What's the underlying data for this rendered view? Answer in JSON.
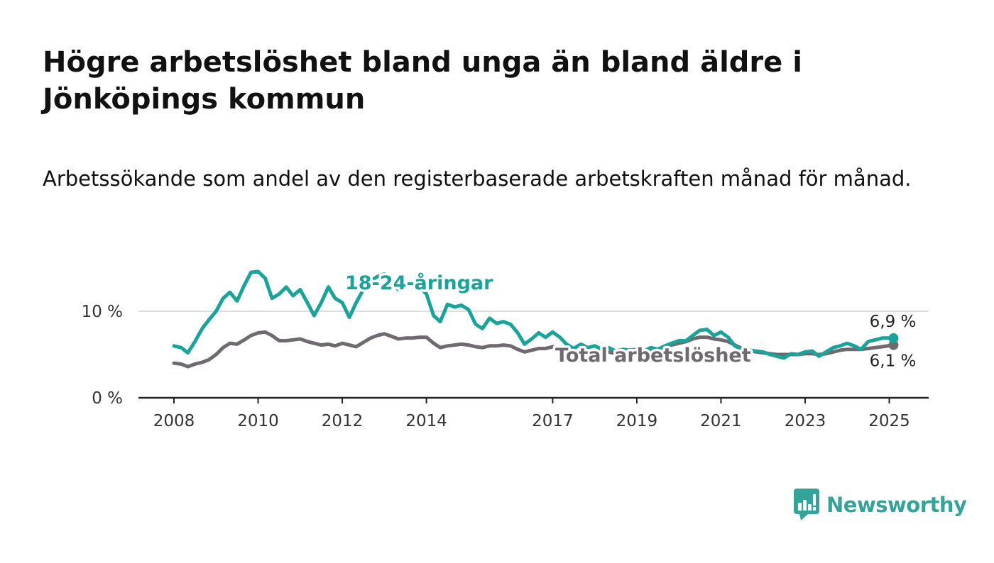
{
  "title": "Högre arbetslöshet bland unga än bland äldre i Jönköpings kommun",
  "subtitle": "Arbetssökande som andel av den registerbaserade arbetskraften månad för månad.",
  "brand": {
    "name": "Newsworthy",
    "icon": "newsworthy-logo-icon",
    "color": "#36a39a"
  },
  "chart_data": {
    "type": "line",
    "title": "Högre arbetslöshet bland unga än bland äldre i Jönköpings kommun",
    "subtitle": "Arbetssökande som andel av den registerbaserade arbetskraften månad för månad.",
    "xlabel": "",
    "ylabel": "",
    "xlim": [
      2008,
      2025.75
    ],
    "ylim": [
      0,
      15
    ],
    "x_ticks": [
      {
        "value": 2008,
        "label": "2008"
      },
      {
        "value": 2010,
        "label": "2010"
      },
      {
        "value": 2012,
        "label": "2012"
      },
      {
        "value": 2014,
        "label": "2014"
      },
      {
        "value": 2017,
        "label": "2017"
      },
      {
        "value": 2019,
        "label": "2019"
      },
      {
        "value": 2021,
        "label": "2021"
      },
      {
        "value": 2023,
        "label": "2023"
      },
      {
        "value": 2025,
        "label": "2025"
      }
    ],
    "y_ticks": [
      {
        "value": 0,
        "label": "0 %"
      },
      {
        "value": 10,
        "label": "10 %"
      }
    ],
    "grid": "horizontal",
    "legend": "inline",
    "series": [
      {
        "name": "18-24-åringar",
        "color": "#1aa39a",
        "end_label": "6,9 %",
        "points": [
          [
            2008.0,
            6.0
          ],
          [
            2008.17,
            5.8
          ],
          [
            2008.33,
            5.2
          ],
          [
            2008.5,
            6.5
          ],
          [
            2008.67,
            8.0
          ],
          [
            2008.83,
            9.0
          ],
          [
            2009.0,
            10.0
          ],
          [
            2009.17,
            11.5
          ],
          [
            2009.33,
            12.2
          ],
          [
            2009.5,
            11.2
          ],
          [
            2009.67,
            13.0
          ],
          [
            2009.83,
            14.5
          ],
          [
            2010.0,
            14.6
          ],
          [
            2010.17,
            13.8
          ],
          [
            2010.33,
            11.5
          ],
          [
            2010.5,
            12.0
          ],
          [
            2010.67,
            12.8
          ],
          [
            2010.83,
            11.8
          ],
          [
            2011.0,
            12.5
          ],
          [
            2011.17,
            11.0
          ],
          [
            2011.33,
            9.5
          ],
          [
            2011.5,
            11.0
          ],
          [
            2011.67,
            12.8
          ],
          [
            2011.83,
            11.5
          ],
          [
            2012.0,
            11.0
          ],
          [
            2012.17,
            9.3
          ],
          [
            2012.33,
            11.0
          ],
          [
            2012.5,
            12.5
          ],
          [
            2012.67,
            13.5
          ],
          [
            2012.83,
            14.0
          ],
          [
            2013.0,
            14.3
          ],
          [
            2013.17,
            13.8
          ],
          [
            2013.33,
            12.5
          ],
          [
            2013.5,
            13.0
          ],
          [
            2013.67,
            13.2
          ],
          [
            2013.83,
            12.8
          ],
          [
            2014.0,
            12.0
          ],
          [
            2014.17,
            9.5
          ],
          [
            2014.33,
            8.8
          ],
          [
            2014.5,
            10.8
          ],
          [
            2014.67,
            10.5
          ],
          [
            2014.83,
            10.7
          ],
          [
            2015.0,
            10.2
          ],
          [
            2015.17,
            8.5
          ],
          [
            2015.33,
            8.0
          ],
          [
            2015.5,
            9.2
          ],
          [
            2015.67,
            8.6
          ],
          [
            2015.83,
            8.8
          ],
          [
            2016.0,
            8.5
          ],
          [
            2016.17,
            7.5
          ],
          [
            2016.33,
            6.2
          ],
          [
            2016.5,
            6.8
          ],
          [
            2016.67,
            7.5
          ],
          [
            2016.83,
            7.0
          ],
          [
            2017.0,
            7.6
          ],
          [
            2017.17,
            7.0
          ],
          [
            2017.33,
            6.2
          ],
          [
            2017.5,
            5.7
          ],
          [
            2017.67,
            6.2
          ],
          [
            2017.83,
            5.8
          ],
          [
            2018.0,
            6.0
          ],
          [
            2018.17,
            5.6
          ],
          [
            2018.33,
            5.8
          ],
          [
            2018.5,
            5.4
          ],
          [
            2018.67,
            5.6
          ],
          [
            2018.83,
            5.5
          ],
          [
            2019.0,
            5.6
          ],
          [
            2019.17,
            5.4
          ],
          [
            2019.33,
            5.8
          ],
          [
            2019.5,
            5.6
          ],
          [
            2019.67,
            6.0
          ],
          [
            2019.83,
            6.3
          ],
          [
            2020.0,
            6.6
          ],
          [
            2020.17,
            6.6
          ],
          [
            2020.33,
            7.2
          ],
          [
            2020.5,
            7.8
          ],
          [
            2020.67,
            7.9
          ],
          [
            2020.83,
            7.2
          ],
          [
            2021.0,
            7.6
          ],
          [
            2021.17,
            7.0
          ],
          [
            2021.33,
            6.0
          ],
          [
            2021.5,
            5.6
          ],
          [
            2021.67,
            5.5
          ],
          [
            2021.83,
            5.4
          ],
          [
            2022.0,
            5.3
          ],
          [
            2022.17,
            5.0
          ],
          [
            2022.33,
            4.8
          ],
          [
            2022.5,
            4.6
          ],
          [
            2022.67,
            5.1
          ],
          [
            2022.83,
            5.0
          ],
          [
            2023.0,
            5.3
          ],
          [
            2023.17,
            5.4
          ],
          [
            2023.33,
            4.8
          ],
          [
            2023.5,
            5.3
          ],
          [
            2023.67,
            5.8
          ],
          [
            2023.83,
            6.0
          ],
          [
            2024.0,
            6.3
          ],
          [
            2024.17,
            6.0
          ],
          [
            2024.33,
            5.6
          ],
          [
            2024.5,
            6.5
          ],
          [
            2024.67,
            6.7
          ],
          [
            2024.83,
            6.9
          ],
          [
            2025.1,
            6.9
          ]
        ]
      },
      {
        "name": "Total arbetslöshet",
        "color": "#6e6a6f",
        "end_label": "6,1 %",
        "points": [
          [
            2008.0,
            4.0
          ],
          [
            2008.17,
            3.9
          ],
          [
            2008.33,
            3.6
          ],
          [
            2008.5,
            3.9
          ],
          [
            2008.67,
            4.1
          ],
          [
            2008.83,
            4.4
          ],
          [
            2009.0,
            5.0
          ],
          [
            2009.17,
            5.8
          ],
          [
            2009.33,
            6.3
          ],
          [
            2009.5,
            6.2
          ],
          [
            2009.67,
            6.7
          ],
          [
            2009.83,
            7.2
          ],
          [
            2010.0,
            7.5
          ],
          [
            2010.17,
            7.6
          ],
          [
            2010.33,
            7.2
          ],
          [
            2010.5,
            6.6
          ],
          [
            2010.67,
            6.6
          ],
          [
            2010.83,
            6.7
          ],
          [
            2011.0,
            6.8
          ],
          [
            2011.17,
            6.5
          ],
          [
            2011.33,
            6.3
          ],
          [
            2011.5,
            6.1
          ],
          [
            2011.67,
            6.2
          ],
          [
            2011.83,
            6.0
          ],
          [
            2012.0,
            6.3
          ],
          [
            2012.17,
            6.1
          ],
          [
            2012.33,
            5.9
          ],
          [
            2012.5,
            6.4
          ],
          [
            2012.67,
            6.9
          ],
          [
            2012.83,
            7.2
          ],
          [
            2013.0,
            7.4
          ],
          [
            2013.17,
            7.1
          ],
          [
            2013.33,
            6.8
          ],
          [
            2013.5,
            6.9
          ],
          [
            2013.67,
            6.9
          ],
          [
            2013.83,
            7.0
          ],
          [
            2014.0,
            7.0
          ],
          [
            2014.17,
            6.3
          ],
          [
            2014.33,
            5.8
          ],
          [
            2014.5,
            6.0
          ],
          [
            2014.67,
            6.1
          ],
          [
            2014.83,
            6.2
          ],
          [
            2015.0,
            6.1
          ],
          [
            2015.17,
            5.9
          ],
          [
            2015.33,
            5.8
          ],
          [
            2015.5,
            6.0
          ],
          [
            2015.67,
            6.0
          ],
          [
            2015.83,
            6.1
          ],
          [
            2016.0,
            6.0
          ],
          [
            2016.17,
            5.6
          ],
          [
            2016.33,
            5.3
          ],
          [
            2016.5,
            5.5
          ],
          [
            2016.67,
            5.7
          ],
          [
            2016.83,
            5.7
          ],
          [
            2017.0,
            5.9
          ],
          [
            2017.17,
            5.6
          ],
          [
            2017.33,
            5.3
          ],
          [
            2017.5,
            5.3
          ],
          [
            2017.67,
            5.4
          ],
          [
            2017.83,
            5.3
          ],
          [
            2018.0,
            5.4
          ],
          [
            2018.17,
            5.2
          ],
          [
            2018.33,
            5.3
          ],
          [
            2018.5,
            5.1
          ],
          [
            2018.67,
            5.2
          ],
          [
            2018.83,
            5.2
          ],
          [
            2019.0,
            5.3
          ],
          [
            2019.17,
            5.3
          ],
          [
            2019.33,
            5.5
          ],
          [
            2019.5,
            5.6
          ],
          [
            2019.67,
            5.9
          ],
          [
            2019.83,
            6.1
          ],
          [
            2020.0,
            6.3
          ],
          [
            2020.17,
            6.5
          ],
          [
            2020.33,
            6.8
          ],
          [
            2020.5,
            7.0
          ],
          [
            2020.67,
            7.0
          ],
          [
            2020.83,
            6.8
          ],
          [
            2021.0,
            6.7
          ],
          [
            2021.17,
            6.5
          ],
          [
            2021.33,
            6.1
          ],
          [
            2021.5,
            5.7
          ],
          [
            2021.67,
            5.5
          ],
          [
            2021.83,
            5.3
          ],
          [
            2022.0,
            5.2
          ],
          [
            2022.17,
            5.1
          ],
          [
            2022.33,
            5.0
          ],
          [
            2022.5,
            5.0
          ],
          [
            2022.67,
            5.0
          ],
          [
            2022.83,
            5.0
          ],
          [
            2023.0,
            5.1
          ],
          [
            2023.17,
            5.1
          ],
          [
            2023.33,
            5.0
          ],
          [
            2023.5,
            5.1
          ],
          [
            2023.67,
            5.3
          ],
          [
            2023.83,
            5.5
          ],
          [
            2024.0,
            5.6
          ],
          [
            2024.17,
            5.6
          ],
          [
            2024.33,
            5.6
          ],
          [
            2024.5,
            5.7
          ],
          [
            2024.67,
            5.8
          ],
          [
            2024.83,
            5.9
          ],
          [
            2025.1,
            6.1
          ]
        ]
      }
    ]
  }
}
